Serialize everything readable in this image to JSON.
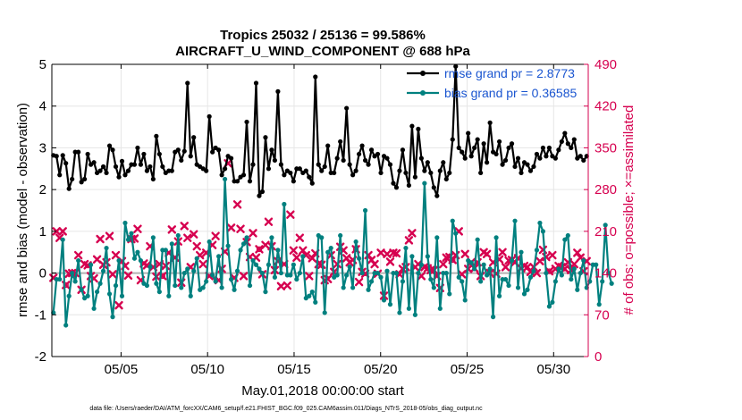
{
  "chart_data": {
    "type": "line",
    "title": "Tropics 25032 / 25136 = 99.586%",
    "subtitle": "AIRCRAFT_U_WIND_COMPONENT @ 688 hPa",
    "xlabel": "May.01,2018 00:00:00 start",
    "ylabel_left": "rmse and bias (model - observation)",
    "ylabel_right": "# of obs: o=possible; ×=assimilated",
    "footnote": "data file: /Users/raeder/DAI/ATM_forcXX/CAM6_setup/f.e21.FHIST_BGC.f09_025.CAM6assim.011/Diags_NTrS_2018-05/obs_diag_output.nc",
    "x_ticks": [
      5,
      10,
      15,
      20,
      25,
      30
    ],
    "x_tick_labels": [
      "05/05",
      "05/10",
      "05/15",
      "05/20",
      "05/25",
      "05/30"
    ],
    "xlim": [
      1,
      32
    ],
    "ylim_left": [
      -2,
      5
    ],
    "y_ticks_left": [
      "-2",
      "-1",
      "0",
      "1",
      "2",
      "3",
      "4",
      "5"
    ],
    "ylim_right": [
      0,
      490
    ],
    "y_ticks_right": [
      "0",
      "70",
      "140",
      "210",
      "280",
      "350",
      "420",
      "490"
    ],
    "colors": {
      "rmse": "#000000",
      "bias": "#00807f",
      "obs": "#d6004f",
      "zero": "#b3b3b3",
      "legend_text": "#1a55d0"
    },
    "series": [
      {
        "name": "rmse grand pr = 2.8773",
        "axis": "left",
        "marker": "o",
        "values": [
          2.82,
          2.8,
          2.35,
          2.82,
          2.63,
          2.02,
          2.25,
          2.9,
          2.9,
          2.18,
          2.25,
          2.85,
          2.6,
          2.65,
          2.4,
          2.45,
          2.55,
          2.4,
          3.05,
          2.95,
          2.55,
          2.3,
          2.68,
          2.35,
          2.45,
          2.6,
          2.6,
          3.0,
          2.6,
          2.85,
          2.45,
          2.55,
          2.25,
          3.28,
          2.85,
          2.55,
          2.4,
          2.45,
          2.45,
          2.9,
          2.95,
          2.7,
          2.92,
          4.55,
          2.8,
          3.25,
          2.6,
          2.55,
          2.5,
          2.45,
          3.75,
          2.9,
          3.0,
          2.95,
          2.35,
          2.5,
          2.8,
          2.75,
          2.2,
          2.2,
          2.3,
          2.35,
          3.62,
          2.2,
          2.6,
          4.55,
          1.85,
          1.95,
          3.25,
          2.5,
          2.95,
          2.7,
          4.35,
          2.6,
          2.35,
          2.45,
          2.4,
          2.2,
          2.5,
          2.5,
          2.4,
          2.45,
          2.3,
          2.15,
          4.7,
          2.6,
          2.45,
          2.55,
          3.05,
          2.4,
          2.4,
          2.75,
          3.15,
          2.7,
          3.95,
          2.6,
          2.35,
          2.45,
          2.85,
          3.05,
          2.7,
          2.6,
          2.95,
          2.8,
          2.85,
          2.4,
          2.8,
          2.75,
          2.6,
          2.15,
          2.05,
          2.45,
          2.95,
          2.4,
          2.1,
          3.52,
          2.3,
          3.45,
          2.75,
          2.45,
          2.65,
          2.4,
          2.05,
          1.85,
          2.45,
          2.65,
          2.25,
          2.4,
          3.2,
          4.95,
          3.0,
          2.9,
          2.75,
          3.35,
          2.8,
          3.0,
          3.2,
          2.4,
          3.1,
          2.65,
          3.6,
          2.9,
          2.85,
          3.15,
          2.6,
          2.7,
          3.0,
          3.1,
          2.55,
          2.75,
          2.4,
          2.65,
          2.6,
          2.45,
          2.55,
          2.85,
          2.75,
          3.0,
          2.8,
          3.0,
          2.8,
          2.75,
          2.95,
          3.15,
          3.35,
          3.1,
          3.0,
          3.2,
          2.75,
          2.8,
          2.7,
          2.8
        ]
      },
      {
        "name": "bias grand pr = 0.36585",
        "axis": "left",
        "marker": "o",
        "values": [
          -0.95,
          -0.15,
          -0.15,
          0.8,
          -1.25,
          -0.55,
          0.0,
          -0.2,
          0.3,
          -0.4,
          -0.6,
          -0.55,
          0.2,
          -0.85,
          -0.45,
          -0.25,
          0.05,
          0.6,
          -0.5,
          -1.05,
          -0.3,
          0.3,
          -0.55,
          1.2,
          0.8,
          0.95,
          0.35,
          0.5,
          0.3,
          -0.25,
          -0.3,
          0.15,
          0.85,
          -0.25,
          -0.45,
          0.55,
          0.55,
          -0.55,
          0.7,
          -0.3,
          0.9,
          -0.35,
          0.0,
          0.1,
          -0.55,
          0.05,
          0.35,
          -0.4,
          -0.35,
          -0.2,
          0.75,
          -0.05,
          -0.2,
          0.4,
          -0.35,
          2.25,
          0.65,
          -0.15,
          -0.4,
          0.05,
          0.55,
          0.7,
          0.85,
          -0.3,
          0.3,
          0.2,
          0.1,
          0.0,
          -0.45,
          0.2,
          0.85,
          -0.1,
          0.55,
          0.0,
          1.65,
          -0.05,
          -0.05,
          0.2,
          -0.15,
          0.0,
          0.4,
          -0.6,
          -0.55,
          -0.45,
          -0.7,
          0.9,
          0.85,
          -0.95,
          0.5,
          0.6,
          -0.1,
          -0.05,
          0.9,
          -0.35,
          -0.05,
          0.15,
          -0.35,
          0.75,
          0.35,
          0.0,
          1.5,
          -0.4,
          -0.2,
          0.0,
          0.0,
          -0.1,
          -0.65,
          0.05,
          -0.75,
          0.0,
          0.0,
          -0.95,
          -0.2,
          0.6,
          -0.85,
          0.4,
          -1.0,
          0.0,
          0.2,
          2.15,
          0.4,
          -0.15,
          -0.35,
          0.85,
          -0.85,
          0.0,
          0.0,
          -0.5,
          1.25,
          0.95,
          -0.1,
          -0.2,
          -0.65,
          0.3,
          0.25,
          0.1,
          0.8,
          -0.2,
          0.2,
          -0.05,
          0.1,
          -1.05,
          0.85,
          -0.55,
          -0.15,
          -0.15,
          -0.3,
          0.3,
          1.25,
          -0.35,
          0.5,
          -0.5,
          -0.4,
          -0.1,
          0.05,
          0.55,
          1.2,
          1.0,
          0.0,
          -0.8,
          -0.7,
          -0.2,
          0.1,
          -0.05,
          0.8,
          0.9,
          -0.15,
          0.1,
          -0.4,
          0.0,
          0.3,
          -0.35,
          -0.2,
          0.2,
          0.2,
          -0.75,
          -0.2,
          1.15,
          0.0,
          -0.25
        ]
      },
      {
        "name": "# of obs (assimilated)",
        "axis": "right",
        "marker": "x",
        "values": [
          132,
          210,
          199,
          210,
          120,
          139,
          140,
          140,
          170,
          112,
          155,
          153,
          135,
          131,
          163,
          197,
          154,
          158,
          202,
          138,
          170,
          86,
          160,
          152,
          136,
          197,
          198,
          214,
          128,
          156,
          153,
          185,
          150,
          134,
          155,
          135,
          152,
          174,
          213,
          166,
          193,
          124,
          219,
          199,
          150,
          205,
          185,
          170,
          155,
          174,
          135,
          187,
          202,
          128,
          147,
          176,
          324,
          216,
          132,
          255,
          214,
          135,
          192,
          167,
          207,
          166,
          180,
          138,
          187,
          226,
          185,
          145,
          160,
          118,
          155,
          119,
          238,
          178,
          166,
          199,
          178,
          170,
          135,
          165,
          173,
          155,
          154,
          128,
          130,
          170,
          142,
          155,
          184,
          178,
          165,
          158,
          162,
          180,
          125,
          142,
          139,
          170,
          162,
          155,
          139,
          174,
          102,
          172,
          159,
          174,
          173,
          138,
          147,
          150,
          195,
          207,
          150,
          155,
          135,
          150,
          148,
          145,
          145,
          135,
          115,
          155,
          166,
          167,
          162,
          170,
          210,
          138,
          172,
          147,
          158,
          148,
          158,
          135,
          175,
          172,
          140,
          158,
          139,
          163,
          175,
          150,
          161,
          162,
          158,
          165,
          148,
          152,
          150,
          142,
          150,
          140,
          160,
          179,
          167,
          143,
          170,
          147,
          152,
          150,
          147,
          158,
          145,
          155,
          174,
          166,
          143,
          160
        ]
      },
      {
        "name": "# of obs (possible)",
        "axis": "right",
        "marker": "o",
        "values": [
          132,
          210,
          199,
          210,
          120,
          139,
          140,
          140,
          170,
          112,
          155,
          153,
          135,
          131,
          163,
          197,
          154,
          158,
          202,
          138,
          170,
          86,
          160,
          152,
          136,
          197,
          198,
          214,
          128,
          156,
          153,
          185,
          150,
          134,
          155,
          135,
          152,
          174,
          213,
          166,
          193,
          124,
          219,
          199,
          150,
          205,
          185,
          170,
          155,
          174,
          135,
          187,
          202,
          128,
          147,
          176,
          324,
          216,
          132,
          255,
          214,
          135,
          192,
          167,
          207,
          166,
          180,
          138,
          187,
          226,
          185,
          145,
          160,
          118,
          155,
          119,
          238,
          178,
          166,
          199,
          178,
          170,
          135,
          165,
          173,
          155,
          154,
          128,
          130,
          170,
          142,
          155,
          184,
          178,
          165,
          158,
          162,
          180,
          125,
          142,
          139,
          170,
          162,
          155,
          139,
          174,
          102,
          172,
          159,
          174,
          173,
          138,
          147,
          150,
          195,
          207,
          150,
          155,
          135,
          150,
          148,
          145,
          145,
          135,
          115,
          155,
          166,
          167,
          162,
          170,
          210,
          138,
          172,
          147,
          158,
          148,
          158,
          135,
          175,
          172,
          140,
          158,
          139,
          163,
          175,
          150,
          161,
          162,
          158,
          165,
          148,
          152,
          150,
          142,
          150,
          140,
          160,
          179,
          167,
          143,
          170,
          147,
          152,
          150,
          147,
          158,
          145,
          155,
          174,
          166,
          143,
          160
        ]
      }
    ],
    "legend_position": "top-right",
    "grid": true
  }
}
